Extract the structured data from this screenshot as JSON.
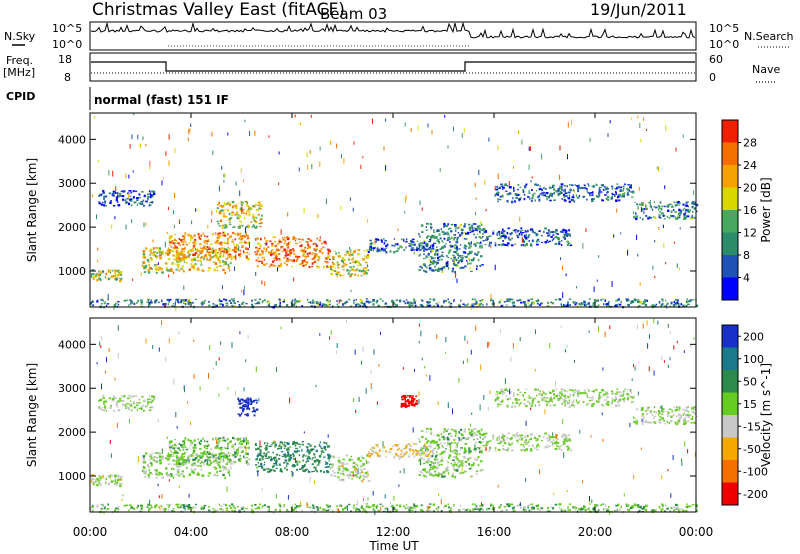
{
  "header": {
    "title": "Christmas Valley East (fitACF)",
    "beam": "Beam 03",
    "date": "19/Jun/2011"
  },
  "strips": {
    "nsky_label": "N.Sky",
    "nsky_tick_hi": "10^5",
    "nsky_tick_lo": "10^0",
    "nsearch_label": "N.Search",
    "nsearch_tick_hi": "10^5",
    "nsearch_tick_lo": "10^0",
    "freq_label": "Freq.",
    "freq_unit": "[MHz]",
    "freq_tick_hi": "18",
    "freq_tick_lo": "8",
    "nave_label": "Nave",
    "nave_tick_hi": "60",
    "nave_tick_lo": "0",
    "cpid_label": "CPID",
    "cpid_text": "normal (fast) 151 IF"
  },
  "chart_data": [
    {
      "type": "heatmap",
      "name": "Power",
      "xlabel": "",
      "ylabel": "Slant Range [km]",
      "xlim": [
        0,
        24
      ],
      "ylim": [
        180,
        4600
      ],
      "yticks": [
        "1000",
        "2000",
        "3000",
        "4000"
      ],
      "colorbar": {
        "label": "Power [dB]",
        "ticks": [
          "4",
          "8",
          "12",
          "16",
          "20",
          "24",
          "28"
        ],
        "colors": [
          "#0000ff",
          "#1e52b4",
          "#2c8c6a",
          "#48a860",
          "#d8d800",
          "#f5a200",
          "#f57000",
          "#ef2000"
        ]
      },
      "features": [
        {
          "t0": 0.0,
          "t1": 1.2,
          "r0": 800,
          "r1": 1050,
          "level": 0.55
        },
        {
          "t0": 0.3,
          "t1": 2.5,
          "r0": 2500,
          "r1": 2850,
          "level": 0.15
        },
        {
          "t0": 2.0,
          "t1": 5.6,
          "r0": 980,
          "r1": 1550,
          "level": 0.6
        },
        {
          "t0": 3.0,
          "t1": 6.3,
          "r0": 1300,
          "r1": 1900,
          "level": 0.75
        },
        {
          "t0": 5.0,
          "t1": 6.8,
          "r0": 2000,
          "r1": 2600,
          "level": 0.6
        },
        {
          "t0": 6.5,
          "t1": 9.5,
          "r0": 1100,
          "r1": 1800,
          "level": 0.8
        },
        {
          "t0": 9.5,
          "t1": 11.0,
          "r0": 900,
          "r1": 1500,
          "level": 0.55
        },
        {
          "t0": 11.0,
          "t1": 13.5,
          "r0": 1450,
          "r1": 1750,
          "level": 0.25
        },
        {
          "t0": 13.0,
          "t1": 15.5,
          "r0": 1000,
          "r1": 2100,
          "level": 0.3
        },
        {
          "t0": 15.5,
          "t1": 19.0,
          "r0": 1600,
          "r1": 2000,
          "level": 0.2
        },
        {
          "t0": 16.0,
          "t1": 21.5,
          "r0": 2600,
          "r1": 3000,
          "level": 0.2
        },
        {
          "t0": 21.5,
          "t1": 24.0,
          "r0": 2200,
          "r1": 2600,
          "level": 0.3
        },
        {
          "t0": 0.0,
          "t1": 24.0,
          "r0": 200,
          "r1": 380,
          "level": 0.3
        }
      ]
    },
    {
      "type": "heatmap",
      "name": "Velocity",
      "xlabel": "Time UT",
      "ylabel": "Slant Range [km]",
      "xlim": [
        0,
        24
      ],
      "ylim": [
        180,
        4600
      ],
      "xticks": [
        "00:00",
        "04:00",
        "08:00",
        "12:00",
        "16:00",
        "20:00",
        "00:00"
      ],
      "yticks": [
        "1000",
        "2000",
        "3000",
        "4000"
      ],
      "colorbar": {
        "label": "Velocity [m s^-1]",
        "ticks": [
          "200",
          "100",
          "50",
          "15",
          "-15",
          "-50",
          "-100",
          "-200"
        ],
        "colors": [
          "#1830c8",
          "#1a7a8a",
          "#2c8a4a",
          "#66cc22",
          "#c8c8c8",
          "#f5a800",
          "#f57000",
          "#ee0000"
        ]
      },
      "features": [
        {
          "t0": 0.0,
          "t1": 1.2,
          "r0": 800,
          "r1": 1050,
          "vel": -5
        },
        {
          "t0": 0.3,
          "t1": 2.5,
          "r0": 2500,
          "r1": 2850,
          "vel": 0
        },
        {
          "t0": 2.0,
          "t1": 5.6,
          "r0": 980,
          "r1": 1550,
          "vel": 5
        },
        {
          "t0": 3.0,
          "t1": 6.3,
          "r0": 1300,
          "r1": 1900,
          "vel": 20
        },
        {
          "t0": 5.8,
          "t1": 6.6,
          "r0": 2400,
          "r1": 2800,
          "vel": 180
        },
        {
          "t0": 6.5,
          "t1": 9.5,
          "r0": 1100,
          "r1": 1800,
          "vel": 60
        },
        {
          "t0": 9.5,
          "t1": 11.0,
          "r0": 900,
          "r1": 1500,
          "vel": -5
        },
        {
          "t0": 11.0,
          "t1": 13.5,
          "r0": 1450,
          "r1": 1750,
          "vel": -40
        },
        {
          "t0": 12.3,
          "t1": 12.9,
          "r0": 2600,
          "r1": 2850,
          "vel": -200
        },
        {
          "t0": 13.0,
          "t1": 15.5,
          "r0": 1000,
          "r1": 2100,
          "vel": 10
        },
        {
          "t0": 15.5,
          "t1": 19.0,
          "r0": 1600,
          "r1": 2000,
          "vel": 0
        },
        {
          "t0": 16.0,
          "t1": 21.5,
          "r0": 2600,
          "r1": 3000,
          "vel": 0
        },
        {
          "t0": 21.5,
          "t1": 24.0,
          "r0": 2200,
          "r1": 2600,
          "vel": 0
        },
        {
          "t0": 0.0,
          "t1": 24.0,
          "r0": 200,
          "r1": 380,
          "vel": 20
        }
      ]
    }
  ]
}
